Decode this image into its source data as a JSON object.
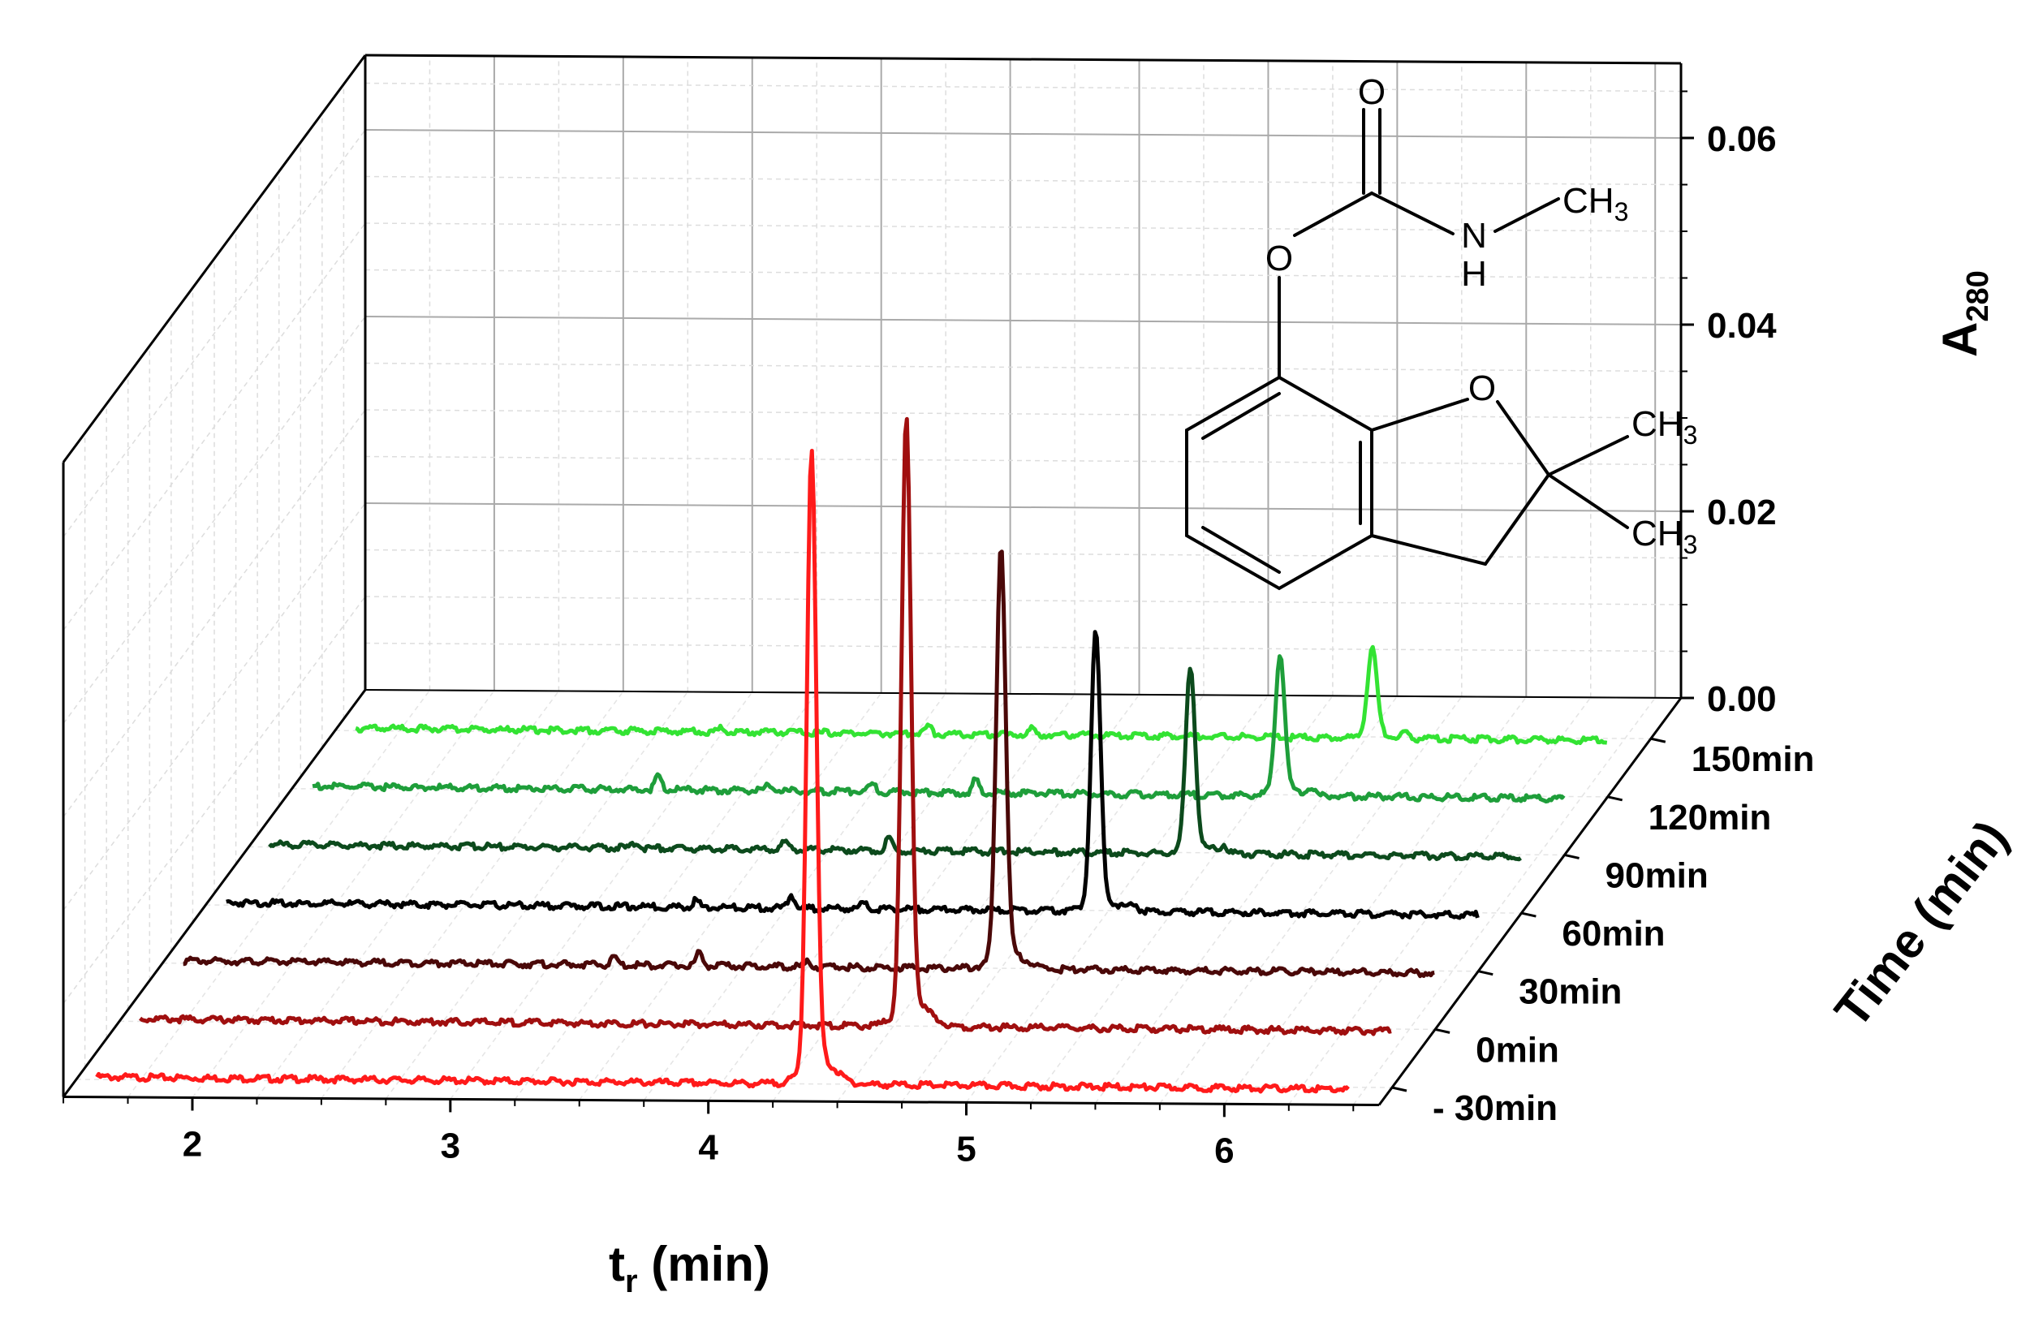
{
  "chart_data": {
    "type": "line",
    "style": "3d-waterfall",
    "x_axis": {
      "label_main": "t",
      "label_sub": "r",
      "label_unit": " (min)",
      "range": [
        1.5,
        6.6
      ],
      "ticks": [
        2,
        3,
        4,
        5,
        6
      ],
      "tick_labels": [
        "2",
        "3",
        "4",
        "5",
        "6"
      ]
    },
    "z_axis": {
      "label_main": "A",
      "label_sub": "280",
      "range": [
        0,
        0.068
      ],
      "ticks": [
        0.0,
        0.02,
        0.04,
        0.06
      ],
      "tick_labels": [
        "0.00",
        "0.02",
        "0.04",
        "0.06"
      ]
    },
    "y_axis": {
      "label": "Time (min)",
      "categories": [
        "- 30min",
        "0min",
        "30min",
        "60min",
        "90min",
        "120min",
        "150min"
      ]
    },
    "grid": true,
    "series": [
      {
        "name": "- 30min",
        "color": "#ff1a1a",
        "peak_x": 4.35,
        "peak_height": 0.066,
        "minor_peaks": []
      },
      {
        "name": "0min",
        "color": "#a00f0f",
        "peak_x": 4.55,
        "peak_height": 0.063,
        "minor_peaks": []
      },
      {
        "name": "30min",
        "color": "#4a0808",
        "peak_x": 4.75,
        "peak_height": 0.044,
        "minor_peaks": [
          [
            3.25,
            0.0008
          ],
          [
            3.58,
            0.0014
          ],
          [
            4.0,
            0.0005
          ]
        ]
      },
      {
        "name": "60min",
        "color": "#000000",
        "peak_x": 4.95,
        "peak_height": 0.029,
        "minor_peaks": [
          [
            3.4,
            0.0008
          ],
          [
            3.77,
            0.0014
          ],
          [
            4.05,
            0.0006
          ],
          [
            5.1,
            0.0008
          ]
        ]
      },
      {
        "name": "90min",
        "color": "#0c4a1c",
        "peak_x": 5.15,
        "peak_height": 0.0195,
        "minor_peaks": [
          [
            3.0,
            0.0006
          ],
          [
            3.58,
            0.0009
          ],
          [
            3.98,
            0.0014
          ],
          [
            5.28,
            0.0008
          ]
        ]
      },
      {
        "name": "120min",
        "color": "#1e9e3a",
        "peak_x": 5.33,
        "peak_height": 0.0148,
        "minor_peaks": [
          [
            2.92,
            0.0016
          ],
          [
            3.35,
            0.0006
          ],
          [
            3.75,
            0.0009
          ],
          [
            4.15,
            0.0014
          ],
          [
            5.45,
            0.0007
          ]
        ]
      },
      {
        "name": "150min",
        "color": "#33e333",
        "peak_x": 5.52,
        "peak_height": 0.0095,
        "minor_peaks": [
          [
            3.0,
            0.0004
          ],
          [
            3.8,
            0.0008
          ],
          [
            4.2,
            0.0006
          ],
          [
            5.65,
            0.0006
          ]
        ]
      }
    ]
  },
  "molecule": {
    "atoms": {
      "o_top": "O",
      "n": "N",
      "h": "H",
      "ch3_top": "CH",
      "ch3_top_sub": "3",
      "o_ester": "O",
      "o_ring": "O",
      "ch3_a": "CH",
      "ch3_a_sub": "3",
      "ch3_b": "CH",
      "ch3_b_sub": "3"
    }
  }
}
